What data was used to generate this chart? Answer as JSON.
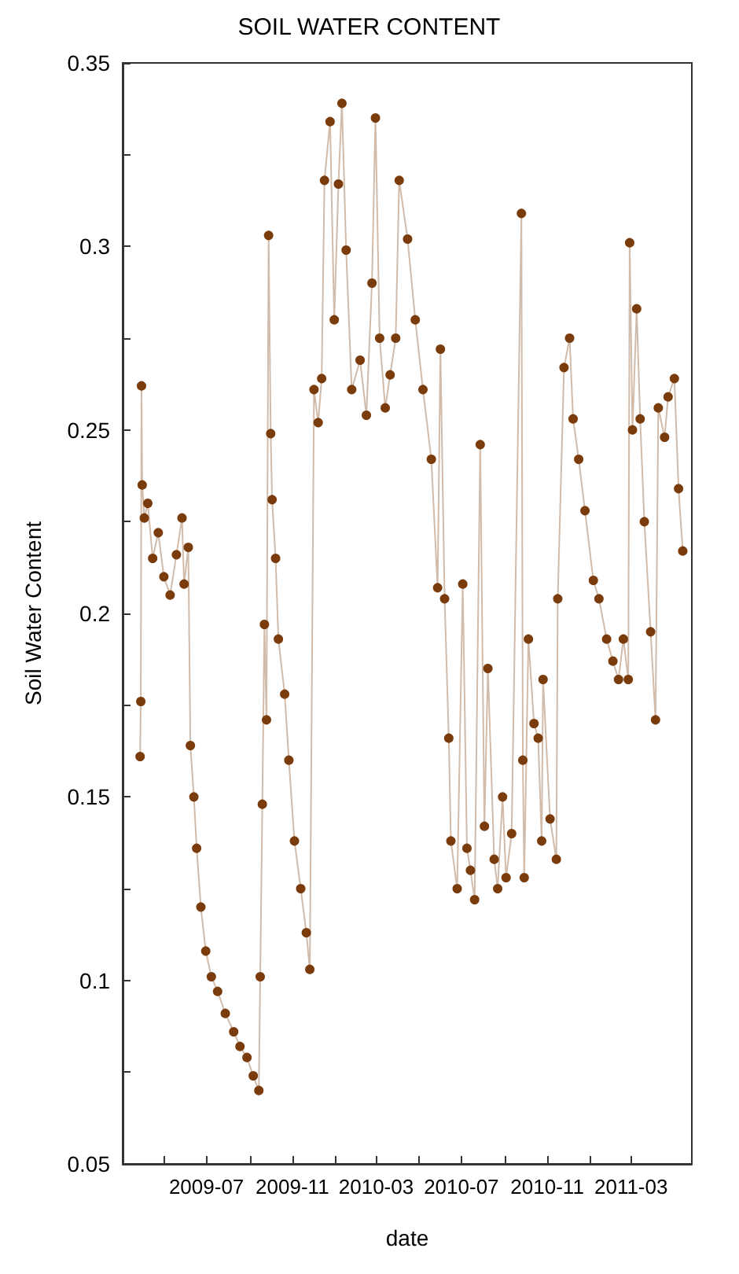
{
  "chart_data": {
    "type": "line",
    "title": "SOIL WATER CONTENT",
    "xlabel": "date",
    "ylabel": "Soil Water Content",
    "x": [
      "2009-03-28",
      "2009-03-29",
      "2009-03-30",
      "2009-03-31",
      "2009-04-03",
      "2009-04-08",
      "2009-04-15",
      "2009-04-23",
      "2009-05-01",
      "2009-05-10",
      "2009-05-19",
      "2009-05-27",
      "2009-05-30",
      "2009-06-05",
      "2009-06-08",
      "2009-06-13",
      "2009-06-17",
      "2009-06-23",
      "2009-06-30",
      "2009-07-08",
      "2009-07-17",
      "2009-07-28",
      "2009-08-09",
      "2009-08-18",
      "2009-08-28",
      "2009-09-06",
      "2009-09-14",
      "2009-09-16",
      "2009-09-19",
      "2009-09-22",
      "2009-09-25",
      "2009-09-28",
      "2009-10-01",
      "2009-10-03",
      "2009-10-08",
      "2009-10-12",
      "2009-10-21",
      "2009-10-27",
      "2009-11-04",
      "2009-11-13",
      "2009-11-21",
      "2009-11-26",
      "2009-12-02",
      "2009-12-08",
      "2009-12-13",
      "2009-12-17",
      "2009-12-25",
      "2009-12-31",
      "2010-01-06",
      "2010-01-11",
      "2010-01-17",
      "2010-01-25",
      "2010-02-06",
      "2010-02-15",
      "2010-02-23",
      "2010-02-28",
      "2010-03-06",
      "2010-03-14",
      "2010-03-21",
      "2010-03-29",
      "2010-04-03",
      "2010-04-15",
      "2010-04-26",
      "2010-05-07",
      "2010-05-19",
      "2010-05-28",
      "2010-06-01",
      "2010-06-07",
      "2010-06-13",
      "2010-06-16",
      "2010-06-25",
      "2010-07-03",
      "2010-07-09",
      "2010-07-14",
      "2010-07-20",
      "2010-07-28",
      "2010-08-03",
      "2010-08-08",
      "2010-08-17",
      "2010-08-22",
      "2010-08-29",
      "2010-09-03",
      "2010-09-11",
      "2010-09-25",
      "2010-09-27",
      "2010-09-29",
      "2010-10-05",
      "2010-10-13",
      "2010-10-19",
      "2010-10-24",
      "2010-10-26",
      "2010-11-05",
      "2010-11-14",
      "2010-11-16",
      "2010-11-25",
      "2010-12-03",
      "2010-12-08",
      "2010-12-16",
      "2010-12-25",
      "2011-01-06",
      "2011-01-14",
      "2011-01-25",
      "2011-02-03",
      "2011-02-11",
      "2011-02-18",
      "2011-02-25",
      "2011-02-27",
      "2011-03-03",
      "2011-03-09",
      "2011-03-14",
      "2011-03-20",
      "2011-03-29",
      "2011-04-05",
      "2011-04-09",
      "2011-04-18",
      "2011-04-23",
      "2011-05-02",
      "2011-05-08",
      "2011-05-14"
    ],
    "series": [
      {
        "color": "#7a3c0c",
        "values": [
          0.161,
          0.176,
          0.262,
          0.235,
          0.226,
          0.23,
          0.215,
          0.222,
          0.21,
          0.205,
          0.216,
          0.226,
          0.208,
          0.218,
          0.164,
          0.15,
          0.136,
          0.12,
          0.108,
          0.101,
          0.097,
          0.091,
          0.086,
          0.082,
          0.079,
          0.074,
          0.07,
          0.101,
          0.148,
          0.197,
          0.171,
          0.303,
          0.249,
          0.231,
          0.215,
          0.193,
          0.178,
          0.16,
          0.138,
          0.125,
          0.113,
          0.103,
          0.261,
          0.252,
          0.264,
          0.318,
          0.334,
          0.28,
          0.317,
          0.339,
          0.299,
          0.261,
          0.269,
          0.254,
          0.29,
          0.335,
          0.275,
          0.256,
          0.265,
          0.275,
          0.318,
          0.302,
          0.28,
          0.261,
          0.242,
          0.207,
          0.272,
          0.204,
          0.166,
          0.138,
          0.125,
          0.208,
          0.136,
          0.13,
          0.122,
          0.246,
          0.142,
          0.185,
          0.133,
          0.125,
          0.15,
          0.128,
          0.14,
          0.309,
          0.16,
          0.128,
          0.193,
          0.17,
          0.166,
          0.138,
          0.182,
          0.144,
          0.133,
          0.204,
          0.267,
          0.275,
          0.253,
          0.242,
          0.228,
          0.209,
          0.204,
          0.193,
          0.187,
          0.182,
          0.193,
          0.182,
          0.301,
          0.25,
          0.283,
          0.253,
          0.225,
          0.195,
          0.171,
          0.256,
          0.248,
          0.259,
          0.264,
          0.234,
          0.217
        ]
      }
    ],
    "xlim": [
      "2009-03-03",
      "2011-05-27"
    ],
    "xticks": [
      {
        "value": "2009-05",
        "label": null
      },
      "2009-07",
      {
        "value": "2009-09",
        "label": null
      },
      "2009-11",
      {
        "value": "2010-01",
        "label": null
      },
      "2010-03",
      {
        "value": "2010-05",
        "label": null
      },
      "2010-07",
      {
        "value": "2010-09",
        "label": null
      },
      "2010-11",
      {
        "value": "2011-01",
        "label": null
      },
      "2011-03"
    ],
    "ylim": [
      0.05,
      0.35
    ],
    "yticks": [
      0.05,
      {
        "value": 0.075,
        "label": null
      },
      0.1,
      {
        "value": 0.125,
        "label": null
      },
      0.15,
      {
        "value": 0.175,
        "label": null
      },
      0.2,
      {
        "value": 0.225,
        "label": null
      },
      0.25,
      {
        "value": 0.275,
        "label": null
      },
      0.3,
      {
        "value": 0.325,
        "label": null
      },
      0.35
    ],
    "marker": "circle",
    "line_style": "solid",
    "grid": false
  }
}
